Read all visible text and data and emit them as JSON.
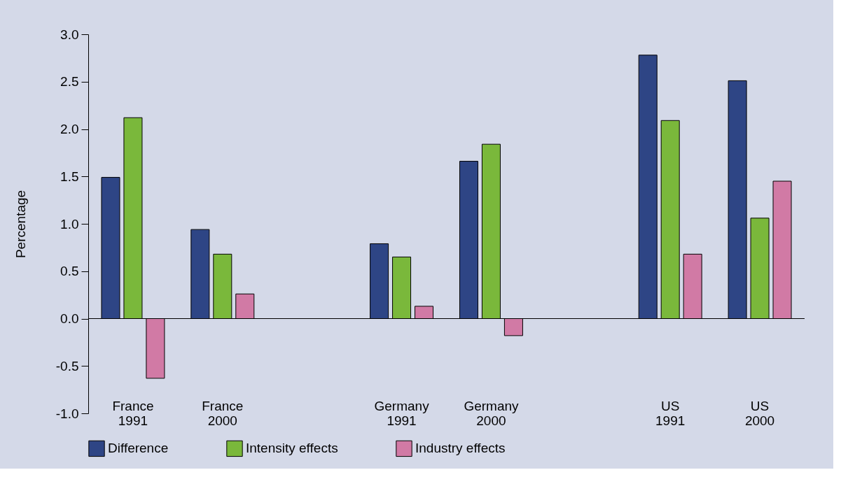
{
  "chart_data": {
    "type": "bar",
    "ylabel": "Percentage",
    "categories": [
      "France 1991",
      "France 2000",
      null,
      "Germany 1991",
      "Germany 2000",
      null,
      "US 1991",
      "US 2000"
    ],
    "series": [
      {
        "name": "Difference",
        "color": "#2e4585",
        "values": [
          1.49,
          0.94,
          null,
          0.79,
          1.66,
          null,
          2.78,
          2.51
        ]
      },
      {
        "name": "Intensity effects",
        "color": "#7ab83b",
        "values": [
          2.12,
          0.68,
          null,
          0.65,
          1.84,
          null,
          2.09,
          1.06
        ]
      },
      {
        "name": "Industry effects",
        "color": "#d17aa5",
        "values": [
          -0.63,
          0.26,
          null,
          0.13,
          -0.18,
          null,
          0.68,
          1.45
        ]
      }
    ],
    "ylim": [
      -1.0,
      3.0
    ],
    "yticks": [
      {
        "value": -1,
        "label": "-1.0"
      },
      {
        "value": -0.5,
        "label": "-0.5"
      },
      {
        "value": 0,
        "label": "0.0"
      },
      {
        "value": 0.5,
        "label": "0.5"
      },
      {
        "value": 1,
        "label": "1.0"
      },
      {
        "value": 1.5,
        "label": "1.5"
      },
      {
        "value": 2,
        "label": "2.0"
      },
      {
        "value": 2.5,
        "label": "2.5"
      },
      {
        "value": 3,
        "label": "3.0"
      }
    ],
    "ref_lines": [
      {
        "axis": "y",
        "value": 0,
        "color": "#000000"
      }
    ],
    "legend": "bottom"
  }
}
